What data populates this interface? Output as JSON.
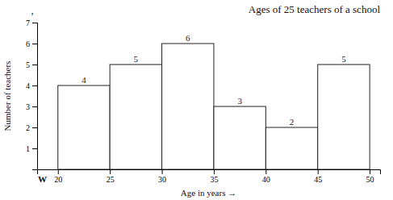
{
  "chart_data": {
    "type": "histogram",
    "title": "Ages of 25 teachers of a school",
    "x_label": "Age in years  →",
    "y_label": "Number of teachers",
    "bins": [
      20,
      25,
      30,
      35,
      40,
      45,
      50
    ],
    "values": [
      4,
      5,
      6,
      3,
      2,
      5
    ],
    "color": "white",
    "xlim": [
      18,
      51
    ],
    "xticks": [
      20,
      25,
      30,
      35,
      40,
      45,
      50
    ],
    "ylim": [
      0,
      7
    ],
    "yticks": [
      1,
      2,
      3,
      4,
      5,
      6,
      7
    ],
    "data_labels": true,
    "grid": false,
    "annotations": [
      "’",
      "W"
    ]
  }
}
